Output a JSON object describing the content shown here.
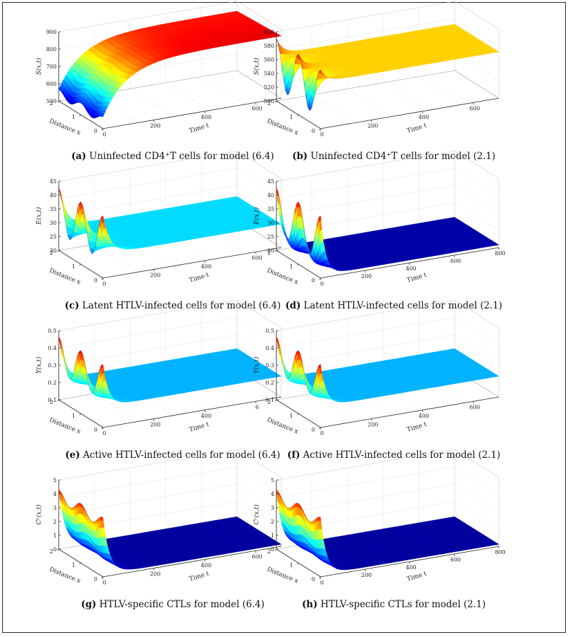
{
  "figure": {
    "panels": [
      {
        "id": "a",
        "letter": "(a)",
        "caption": "Uninfected CD4⁺T cells for model (6.4)",
        "ylabel": "S(x,t)",
        "zticks": [
          "500",
          "600",
          "700",
          "800",
          "900"
        ],
        "tticks": [
          "0",
          "200",
          "400",
          "600"
        ],
        "xticks": [
          "0",
          "1",
          "2"
        ],
        "xlabel": "Distance x",
        "tlabel": "Time t",
        "zrange": [
          500,
          900
        ],
        "tmax": 700,
        "profile": "S64"
      },
      {
        "id": "b",
        "letter": "(b)",
        "caption": "Uninfected CD4⁺T cells for model (2.1)",
        "ylabel": "S(x,t)",
        "zticks": [
          "500",
          "520",
          "540",
          "560",
          "580",
          "600"
        ],
        "tticks": [
          "0",
          "200",
          "400",
          "600"
        ],
        "xticks": [
          "0",
          "1",
          "2"
        ],
        "xlabel": "Distance x",
        "tlabel": "Time t",
        "zrange": [
          500,
          600
        ],
        "tmax": 700,
        "profile": "S21"
      },
      {
        "id": "c",
        "letter": "(c)",
        "caption": "Latent HTLV-infected cells for model (6.4)",
        "ylabel": "E(x,t)",
        "zticks": [
          "20",
          "25",
          "30",
          "35",
          "40",
          "45"
        ],
        "tticks": [
          "0",
          "200",
          "400",
          "600"
        ],
        "xticks": [
          "0",
          "1",
          "2"
        ],
        "xlabel": "Distance x",
        "tlabel": "Time t",
        "zrange": [
          20,
          45
        ],
        "tmax": 700,
        "profile": "E64"
      },
      {
        "id": "d",
        "letter": "(d)",
        "caption": "Latent HTLV-infected cells for model (2.1)",
        "ylabel": "E(x,t)",
        "zticks": [
          "20",
          "25",
          "30",
          "35",
          "40",
          "45"
        ],
        "tticks": [
          "0",
          "200",
          "400",
          "600",
          "800"
        ],
        "xticks": [
          "0",
          "1",
          "2"
        ],
        "xlabel": "Distance x",
        "tlabel": "Time t",
        "zrange": [
          20,
          45
        ],
        "tmax": 800,
        "profile": "E21"
      },
      {
        "id": "e",
        "letter": "(e)",
        "caption": "Active HTLV-infected cells for model (6.4)",
        "ylabel": "Y(x,t)",
        "zticks": [
          "0.1",
          "0.2",
          "0.3",
          "0.4",
          "0.5"
        ],
        "tticks": [
          "0",
          "200",
          "400",
          "6"
        ],
        "xticks": [
          "0",
          "1",
          "2"
        ],
        "xlabel": "Distance x",
        "tlabel": "Time t",
        "zrange": [
          0.1,
          0.5
        ],
        "tmax": 700,
        "profile": "Y64"
      },
      {
        "id": "f",
        "letter": "(f)",
        "caption": "Active HTLV-infected cells for model (2.1)",
        "ylabel": "Y(x,t)",
        "zticks": [
          "0.1",
          "0.2",
          "0.3",
          "0.4",
          "0.5"
        ],
        "tticks": [
          "0",
          "200",
          "400",
          "600"
        ],
        "xticks": [
          "0",
          "1",
          "2"
        ],
        "xlabel": "Distance x",
        "tlabel": "Time t",
        "zrange": [
          0.1,
          0.5
        ],
        "tmax": 700,
        "profile": "Y21"
      },
      {
        "id": "g",
        "letter": "(g)",
        "caption": "HTLV-specific CTLs for model (6.4)",
        "ylabel": "Cᴸ(x,t)",
        "zticks": [
          "0",
          "1",
          "2",
          "3",
          "4",
          "5"
        ],
        "tticks": [
          "0",
          "200",
          "400",
          "600"
        ],
        "xticks": [
          "0",
          "1",
          "2"
        ],
        "xlabel": "Distance x",
        "tlabel": "Time t",
        "zrange": [
          0,
          5
        ],
        "tmax": 700,
        "profile": "C64"
      },
      {
        "id": "h",
        "letter": "(h)",
        "caption": "HTLV-specific CTLs for model (2.1)",
        "ylabel": "Cᴸ(x,t)",
        "zticks": [
          "0",
          "1",
          "2",
          "3",
          "4",
          "5"
        ],
        "tticks": [
          "0",
          "200",
          "400",
          "600",
          "800"
        ],
        "xticks": [
          "0",
          "1",
          "2"
        ],
        "xlabel": "Distance x",
        "tlabel": "Time t",
        "zrange": [
          0,
          5
        ],
        "tmax": 800,
        "profile": "C21"
      }
    ]
  }
}
